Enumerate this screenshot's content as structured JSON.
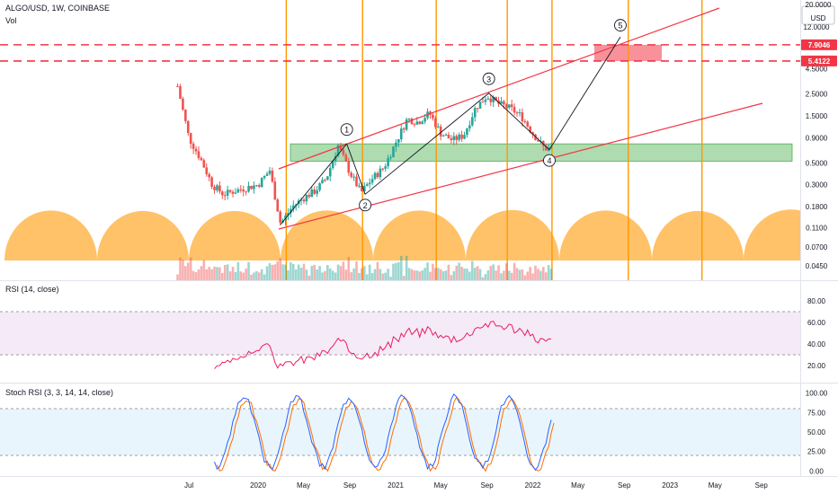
{
  "header": {
    "symbol": "ALGO/USD, 1W, COINBASE",
    "vol_label": "Vol"
  },
  "price_axis": {
    "ticks": [
      "20.0000",
      "12.0000",
      "4.5000",
      "2.5000",
      "1.5000",
      "0.9000",
      "0.5000",
      "0.3000",
      "0.1800",
      "0.1100",
      "0.0700",
      "0.0450"
    ],
    "unit": "USD",
    "badges": [
      {
        "label": "7.9046",
        "color": "#f23645"
      },
      {
        "label": "5.4122",
        "color": "#f23645"
      }
    ]
  },
  "time_axis": {
    "ticks": [
      "Jul",
      "2020",
      "May",
      "Sep",
      "2021",
      "May",
      "Sep",
      "2022",
      "May",
      "Sep",
      "2023",
      "May",
      "Sep"
    ]
  },
  "wave_labels": [
    "1",
    "2",
    "3",
    "4",
    "5"
  ],
  "rsi": {
    "title": "RSI (14, close)",
    "ticks": [
      "80.00",
      "60.00",
      "40.00",
      "20.00"
    ],
    "upper": 70,
    "lower": 30,
    "color": "#e91e63"
  },
  "stoch": {
    "title": "Stoch RSI (3, 3, 14, 14, close)",
    "ticks": [
      "100.00",
      "75.00",
      "50.00",
      "25.00",
      "0.00"
    ],
    "upper": 80,
    "lower": 20,
    "k_color": "#2962ff",
    "d_color": "#ff6d00"
  },
  "colors": {
    "up": "#26a69a",
    "down": "#ef5350",
    "cycle": "#ffb74d",
    "vline": "#ff9800",
    "channel": "#f23645",
    "zone": "#4caf50",
    "target": "#f23645"
  },
  "chart_data": {
    "type": "candlestick",
    "title": "ALGO/USD, 1W, COINBASE",
    "y_scale": "log",
    "price_levels": [
      7.9046,
      5.4122
    ],
    "support_zone": [
      0.52,
      0.78
    ],
    "wave_points": [
      {
        "label": "1",
        "date": "2020-08-24",
        "price": 0.78
      },
      {
        "label": "2",
        "date": "2020-10-12",
        "price": 0.24
      },
      {
        "label": "3",
        "date": "2021-09-06",
        "price": 2.55
      },
      {
        "label": "4",
        "date": "2022-02-14",
        "price": 0.68
      },
      {
        "label": "5",
        "date": "2022-08-22",
        "price": 9.5
      }
    ],
    "cycle_lines": [
      "2020-03-16",
      "2020-10-05",
      "2021-04-19",
      "2021-10-25",
      "2022-02-21",
      "2022-09-12",
      "2023-03-27"
    ],
    "price_series": [
      {
        "date": "2019-06",
        "price": 3.0
      },
      {
        "date": "2019-07",
        "price": 0.9
      },
      {
        "date": "2019-08",
        "price": 0.55
      },
      {
        "date": "2019-09",
        "price": 0.3
      },
      {
        "date": "2019-10",
        "price": 0.24
      },
      {
        "date": "2019-11",
        "price": 0.26
      },
      {
        "date": "2019-12",
        "price": 0.28
      },
      {
        "date": "2020-01",
        "price": 0.3
      },
      {
        "date": "2020-02",
        "price": 0.42
      },
      {
        "date": "2020-03",
        "price": 0.12
      },
      {
        "date": "2020-04",
        "price": 0.18
      },
      {
        "date": "2020-05",
        "price": 0.22
      },
      {
        "date": "2020-06",
        "price": 0.26
      },
      {
        "date": "2020-07",
        "price": 0.35
      },
      {
        "date": "2020-08",
        "price": 0.75
      },
      {
        "date": "2020-09",
        "price": 0.4
      },
      {
        "date": "2020-10",
        "price": 0.25
      },
      {
        "date": "2020-11",
        "price": 0.35
      },
      {
        "date": "2020-12",
        "price": 0.45
      },
      {
        "date": "2021-01",
        "price": 0.8
      },
      {
        "date": "2021-02",
        "price": 1.4
      },
      {
        "date": "2021-03",
        "price": 1.3
      },
      {
        "date": "2021-04",
        "price": 1.6
      },
      {
        "date": "2021-05",
        "price": 1.0
      },
      {
        "date": "2021-06",
        "price": 0.85
      },
      {
        "date": "2021-07",
        "price": 0.95
      },
      {
        "date": "2021-08",
        "price": 1.8
      },
      {
        "date": "2021-09",
        "price": 2.4
      },
      {
        "date": "2021-10",
        "price": 2.0
      },
      {
        "date": "2021-11",
        "price": 1.8
      },
      {
        "date": "2021-12",
        "price": 1.5
      },
      {
        "date": "2022-01",
        "price": 1.0
      },
      {
        "date": "2022-02",
        "price": 0.7
      }
    ]
  }
}
